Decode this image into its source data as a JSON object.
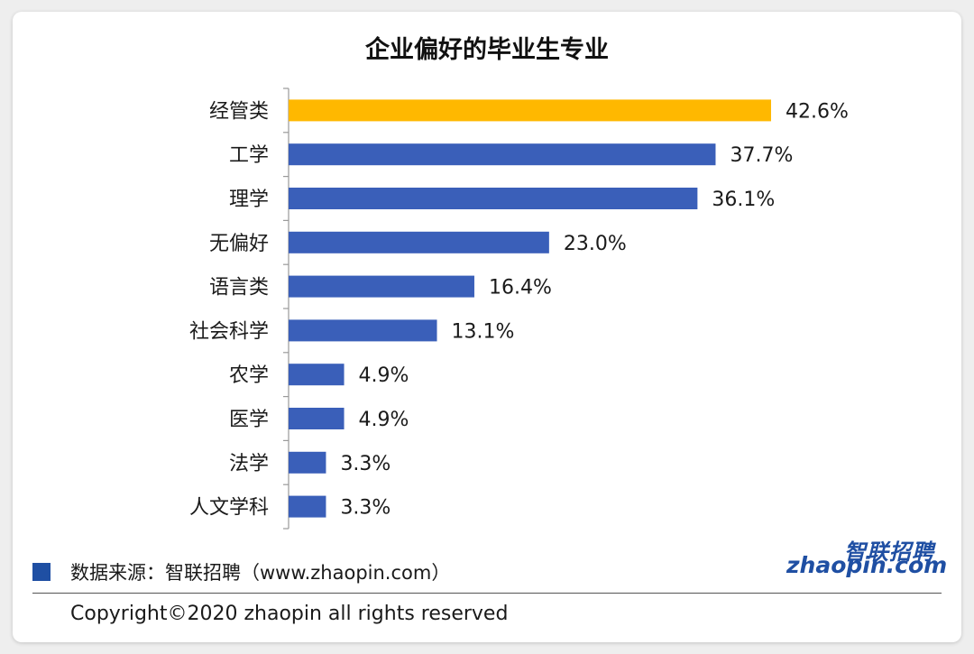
{
  "title": "企业偏好的毕业生专业",
  "chart_data": {
    "type": "bar",
    "orientation": "horizontal",
    "title": "企业偏好的毕业生专业",
    "categories": [
      "经管类",
      "工学",
      "理学",
      "无偏好",
      "语言类",
      "社会科学",
      "农学",
      "医学",
      "法学",
      "人文学科"
    ],
    "values": [
      42.6,
      37.7,
      36.1,
      23.0,
      16.4,
      13.1,
      4.9,
      4.9,
      3.3,
      3.3
    ],
    "value_labels": [
      "42.6%",
      "37.7%",
      "36.1%",
      "23.0%",
      "16.4%",
      "13.1%",
      "4.9%",
      "4.9%",
      "3.3%",
      "3.3%"
    ],
    "unit": "%",
    "highlight_index": 0,
    "xlim": [
      0,
      45
    ],
    "xlabel": "",
    "ylabel": "",
    "grid": false,
    "colors": {
      "default": "#3a5fb9",
      "highlight": "#ffb800"
    }
  },
  "footer": {
    "source_text": "数据来源：智联招聘（www.zhaopin.com）",
    "legend_color": "#1f4fa3",
    "copyright": "Copyright©2020 zhaopin all rights reserved"
  },
  "logo": {
    "cn": "智联招聘",
    "en": "zhaopin.com"
  }
}
